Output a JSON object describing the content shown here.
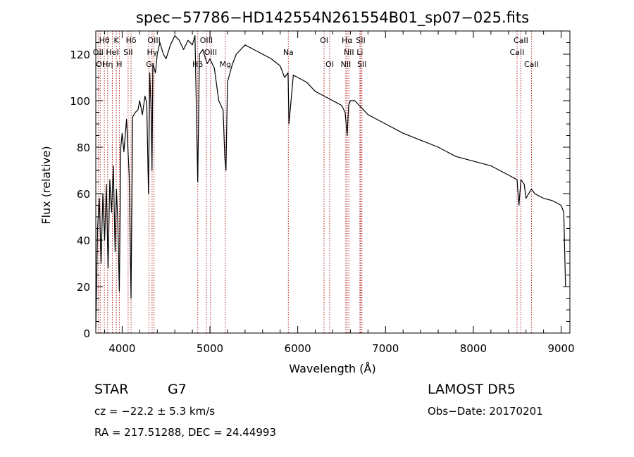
{
  "chart_data": {
    "type": "line",
    "title": "spec−57786−HD142554N261554B01_sp07−025.fits",
    "xlabel": "Wavelength (Å)",
    "ylabel": "Flux (relative)",
    "xlim": [
      3700,
      9100
    ],
    "ylim": [
      0,
      130
    ],
    "x_ticks": [
      4000,
      5000,
      6000,
      7000,
      8000,
      9000
    ],
    "y_ticks": [
      0,
      20,
      40,
      60,
      80,
      100,
      120
    ],
    "grid": false,
    "series": [
      {
        "color": "#000000",
        "x": [
          3700,
          3720,
          3740,
          3760,
          3780,
          3800,
          3820,
          3840,
          3860,
          3880,
          3900,
          3920,
          3935,
          3950,
          3968,
          3985,
          4000,
          4020,
          4050,
          4080,
          4101,
          4120,
          4150,
          4180,
          4200,
          4230,
          4260,
          4280,
          4300,
          4315,
          4330,
          4340,
          4350,
          4380,
          4400,
          4430,
          4470,
          4500,
          4550,
          4600,
          4650,
          4700,
          4750,
          4800,
          4830,
          4861,
          4880,
          4920,
          4950,
          4970,
          5000,
          5050,
          5100,
          5150,
          5170,
          5183,
          5200,
          5250,
          5300,
          5400,
          5500,
          5600,
          5700,
          5800,
          5850,
          5890,
          5900,
          5950,
          6000,
          6100,
          6200,
          6300,
          6400,
          6450,
          6500,
          6540,
          6563,
          6580,
          6600,
          6650,
          6700,
          6800,
          6900,
          7000,
          7200,
          7400,
          7600,
          7800,
          8000,
          8200,
          8400,
          8498,
          8520,
          8542,
          8580,
          8600,
          8662,
          8700,
          8800,
          8900,
          9000,
          9030,
          9050
        ],
        "y": [
          2,
          45,
          58,
          30,
          60,
          40,
          64,
          28,
          66,
          52,
          72,
          35,
          62,
          48,
          18,
          80,
          86,
          78,
          92,
          68,
          15,
          93,
          95,
          96,
          100,
          94,
          102,
          99,
          60,
          112,
          96,
          70,
          116,
          112,
          120,
          125,
          120,
          118,
          124,
          128,
          126,
          122,
          126,
          124,
          128,
          65,
          120,
          122,
          118,
          116,
          118,
          114,
          100,
          96,
          75,
          70,
          108,
          115,
          120,
          124,
          122,
          120,
          118,
          115,
          110,
          112,
          90,
          111,
          110,
          108,
          104,
          102,
          100,
          99,
          98,
          95,
          85,
          98,
          100,
          100,
          98,
          94,
          92,
          90,
          86,
          83,
          80,
          76,
          74,
          72,
          68,
          66,
          55,
          66,
          64,
          58,
          62,
          60,
          58,
          57,
          55,
          52,
          20
        ]
      }
    ],
    "line_labels": [
      {
        "text": "Hθ",
        "x": 3797,
        "row": 0
      },
      {
        "text": "K",
        "x": 3934,
        "row": 0
      },
      {
        "text": "Hδ",
        "x": 4102,
        "row": 0
      },
      {
        "text": "OIII",
        "x": 4363,
        "row": 0
      },
      {
        "text": "OIII",
        "x": 4959,
        "row": 0
      },
      {
        "text": "OI",
        "x": 6300,
        "row": 0
      },
      {
        "text": "Hα",
        "x": 6563,
        "row": 0
      },
      {
        "text": "SII",
        "x": 6717,
        "row": 0
      },
      {
        "text": "CaII",
        "x": 8542,
        "row": 0
      },
      {
        "text": "OII",
        "x": 3727,
        "row": 1
      },
      {
        "text": "HeI",
        "x": 3889,
        "row": 1
      },
      {
        "text": "SII",
        "x": 4068,
        "row": 1
      },
      {
        "text": "Hγ",
        "x": 4341,
        "row": 1
      },
      {
        "text": "OIII",
        "x": 5007,
        "row": 1
      },
      {
        "text": "Na",
        "x": 5893,
        "row": 1
      },
      {
        "text": "NII",
        "x": 6583,
        "row": 1
      },
      {
        "text": "Li",
        "x": 6708,
        "row": 1
      },
      {
        "text": "CaII",
        "x": 8498,
        "row": 1
      },
      {
        "text": "OI",
        "x": 3750,
        "row": 2
      },
      {
        "text": "Hη",
        "x": 3835,
        "row": 2
      },
      {
        "text": "H",
        "x": 3968,
        "row": 2
      },
      {
        "text": "G",
        "x": 4305,
        "row": 2
      },
      {
        "text": "Hβ",
        "x": 4861,
        "row": 2
      },
      {
        "text": "Mg",
        "x": 5175,
        "row": 2
      },
      {
        "text": "OI",
        "x": 6364,
        "row": 2
      },
      {
        "text": "NII",
        "x": 6548,
        "row": 2
      },
      {
        "text": "SII",
        "x": 6731,
        "row": 2
      },
      {
        "text": "CaII",
        "x": 8662,
        "row": 2
      }
    ]
  },
  "info": {
    "obj_class": "STAR",
    "subclass": "G7",
    "survey": "LAMOST DR5",
    "cz": "cz = −22.2 ± 5.3 km/s",
    "obs_date": "Obs−Date: 20170201",
    "coords": "RA = 217.51288, DEC =  24.44993"
  },
  "colors": {
    "spectrum": "#000000",
    "line_markers": "#b22222",
    "axes": "#000000"
  }
}
